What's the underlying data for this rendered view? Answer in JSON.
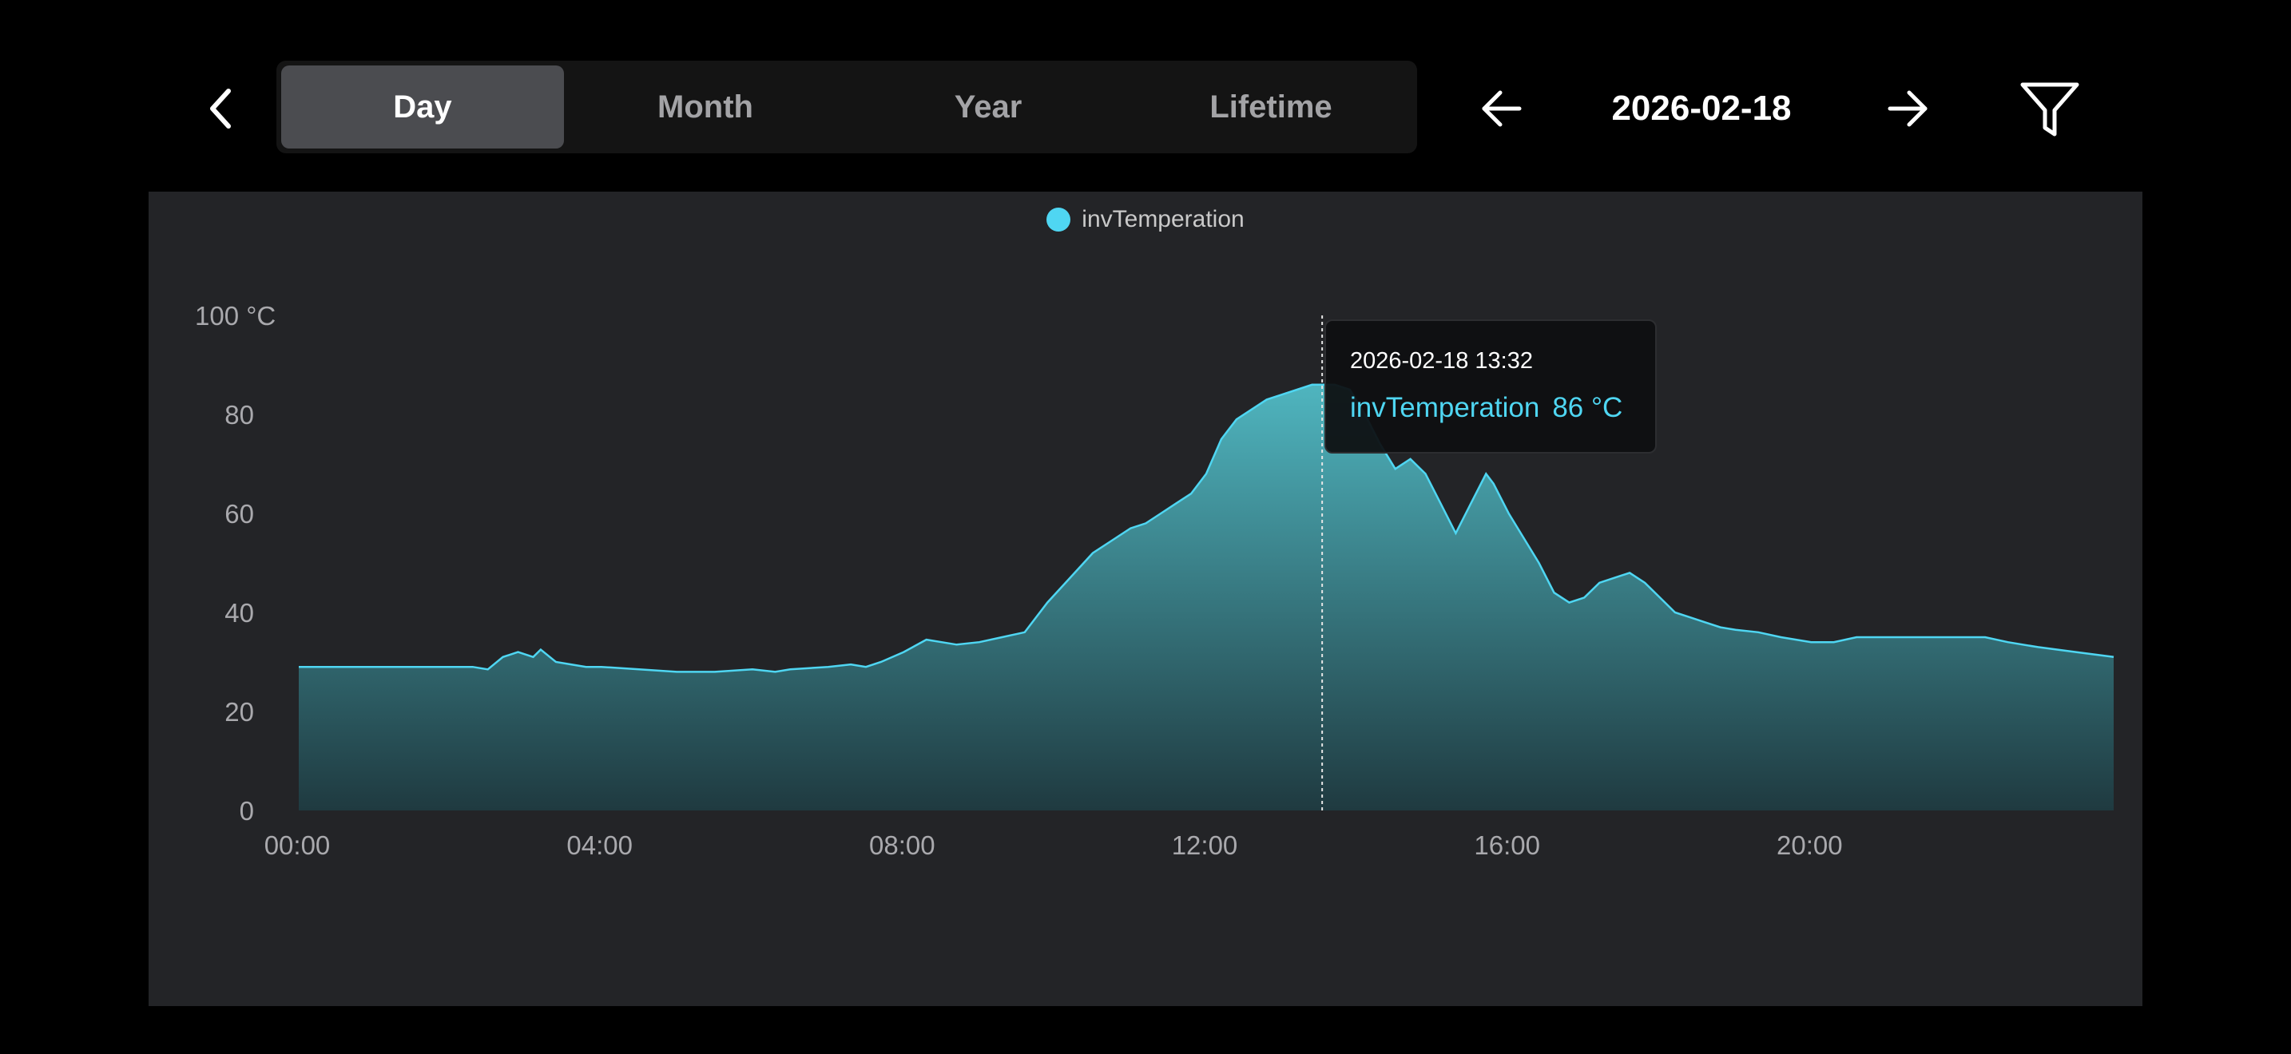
{
  "nav": {
    "back_icon": "chevron-left-icon"
  },
  "period_tabs": [
    {
      "label": "Day",
      "active": true
    },
    {
      "label": "Month",
      "active": false
    },
    {
      "label": "Year",
      "active": false
    },
    {
      "label": "Lifetime",
      "active": false
    }
  ],
  "date_nav": {
    "date": "2026-02-18",
    "prev_icon": "arrow-left-icon",
    "next_icon": "arrow-right-icon",
    "filter_icon": "filter-icon"
  },
  "colors": {
    "series": "#4fd6f2",
    "panel": "#232427",
    "background": "#000000"
  },
  "tooltip": {
    "time": "2026-02-18 13:32",
    "series": "invTemperation",
    "value": "86 °C"
  },
  "chart_data": {
    "type": "area",
    "legend": [
      "invTemperation"
    ],
    "legend_position": "top-center",
    "grid": false,
    "y_ticks": [
      "0",
      "20",
      "40",
      "60",
      "80",
      "100 °C"
    ],
    "x_ticks": [
      "00:00",
      "04:00",
      "08:00",
      "12:00",
      "16:00",
      "20:00"
    ],
    "ylim": [
      0,
      100
    ],
    "xlim": [
      0,
      24
    ],
    "series": [
      {
        "name": "invTemperation",
        "x": [
          0,
          0.5,
          1,
          1.5,
          2,
          2.3,
          2.5,
          2.7,
          2.9,
          3.1,
          3.2,
          3.4,
          3.6,
          3.8,
          4,
          4.5,
          5,
          5.5,
          6,
          6.3,
          6.5,
          7,
          7.3,
          7.5,
          7.7,
          8,
          8.3,
          8.5,
          8.7,
          9,
          9.3,
          9.6,
          9.9,
          10.2,
          10.5,
          10.8,
          11,
          11.2,
          11.4,
          11.6,
          11.8,
          12,
          12.2,
          12.4,
          12.6,
          12.8,
          13,
          13.2,
          13.4,
          13.53,
          13.7,
          13.9,
          14.1,
          14.3,
          14.5,
          14.7,
          14.9,
          15.1,
          15.3,
          15.5,
          15.7,
          15.8,
          16,
          16.2,
          16.4,
          16.6,
          16.8,
          17,
          17.2,
          17.4,
          17.6,
          17.8,
          18,
          18.2,
          18.4,
          18.6,
          18.8,
          19,
          19.3,
          19.6,
          20,
          20.3,
          20.6,
          21,
          21.5,
          22,
          22.3,
          22.6,
          23,
          23.5,
          24
        ],
        "y": [
          29,
          29,
          29,
          29,
          29,
          29,
          28.5,
          31,
          32,
          31,
          32.5,
          30,
          29.5,
          29,
          29,
          28.5,
          28,
          28,
          28.5,
          28,
          28.5,
          29,
          29.5,
          29,
          30,
          32,
          34.5,
          34,
          33.5,
          34,
          35,
          36,
          42,
          47,
          52,
          55,
          57,
          58,
          60,
          62,
          64,
          68,
          75,
          79,
          81,
          83,
          84,
          85,
          86,
          86,
          86,
          85,
          80,
          74,
          69,
          71,
          68,
          62,
          56,
          62,
          68,
          66,
          60,
          55,
          50,
          44,
          42,
          43,
          46,
          47,
          48,
          46,
          43,
          40,
          39,
          38,
          37,
          36.5,
          36,
          35,
          34,
          34,
          35,
          35,
          35,
          35,
          35,
          34,
          33,
          32,
          31
        ]
      }
    ]
  }
}
